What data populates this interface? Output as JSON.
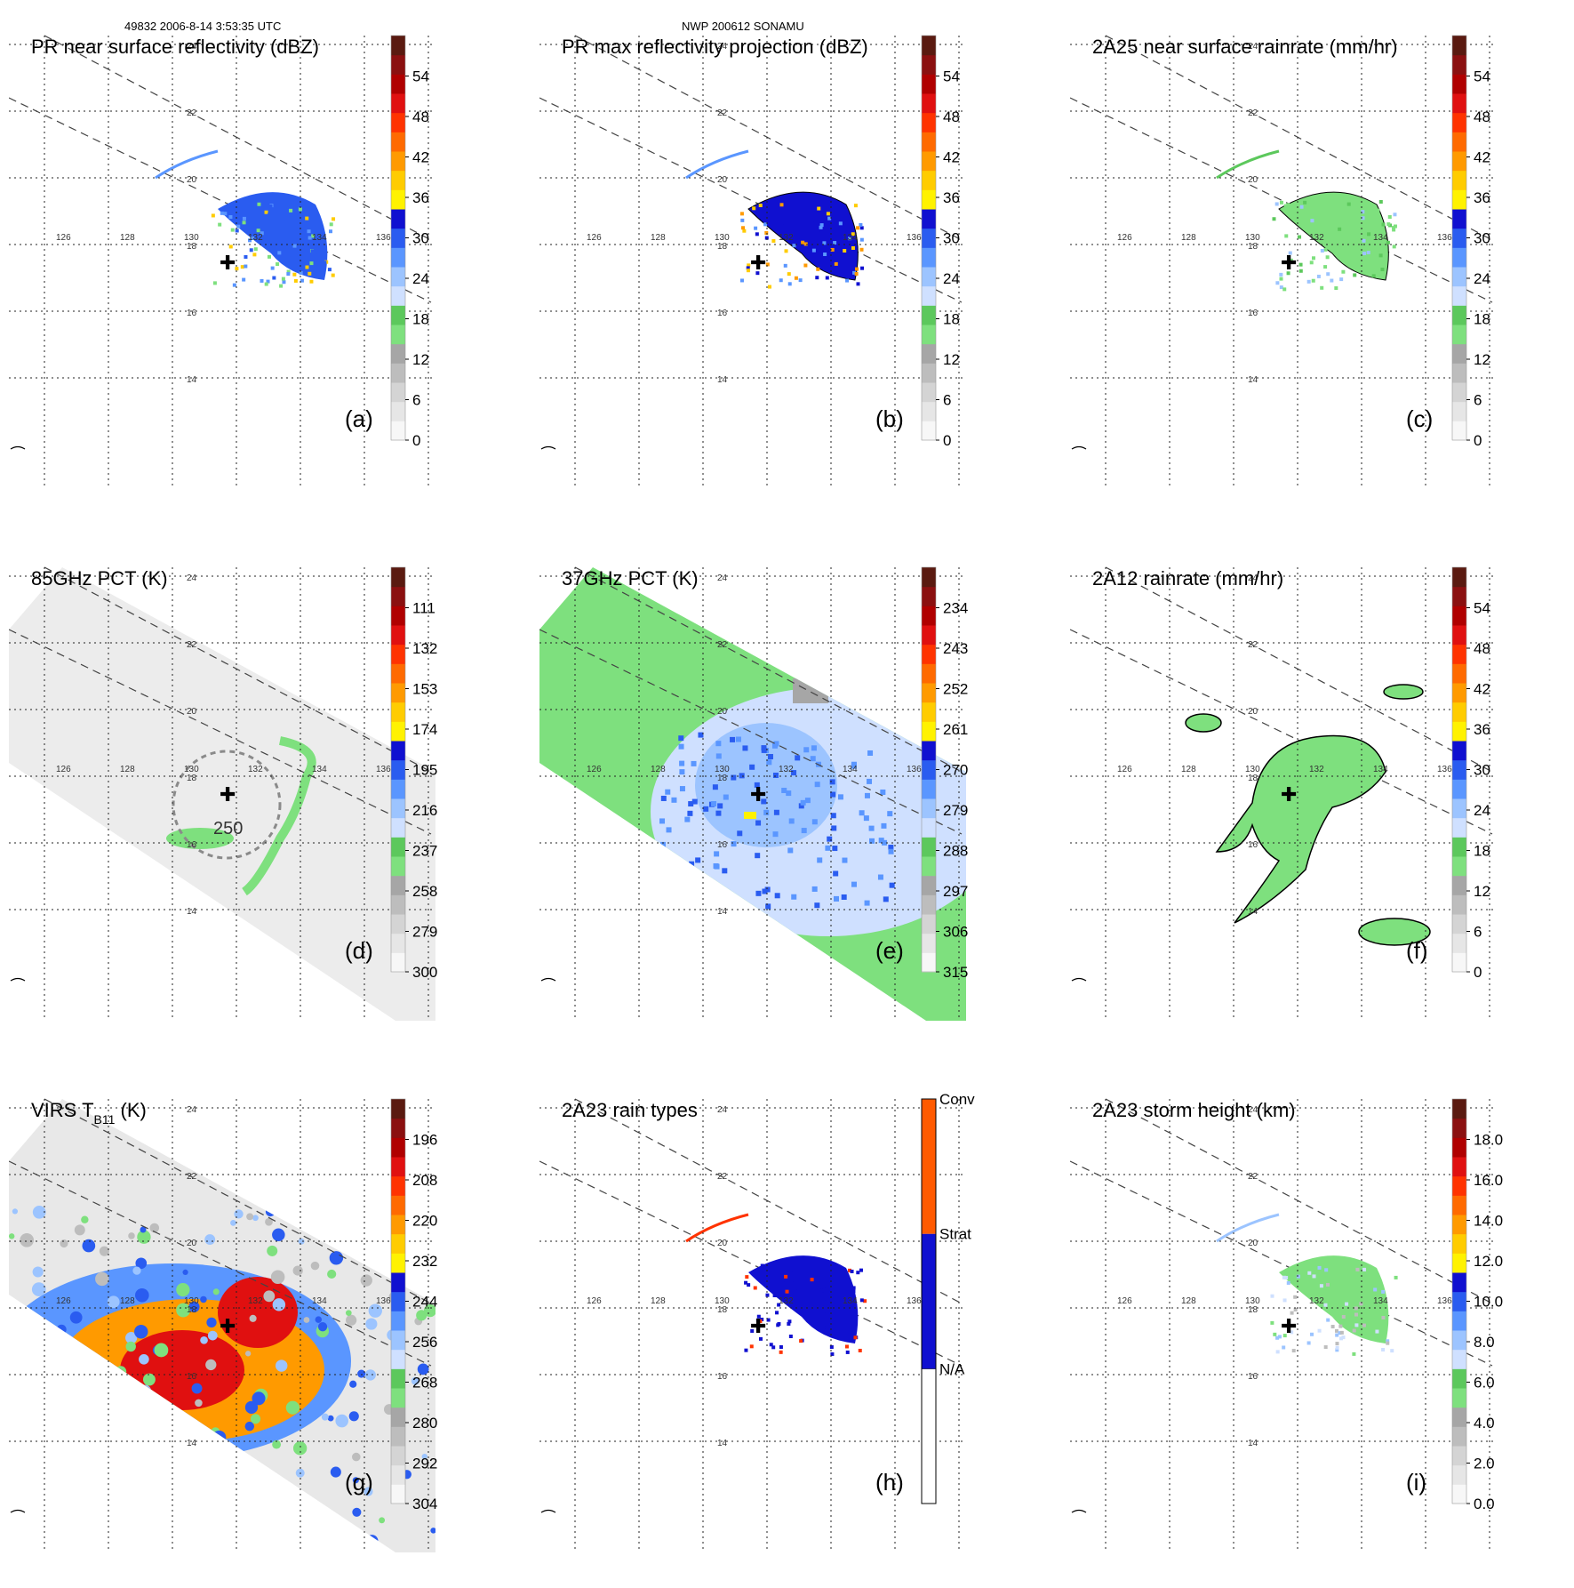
{
  "header": {
    "orbit_time": "49832 2006-8-14 3:53:35 UTC",
    "storm": "NWP 200612 SONAMU"
  },
  "colors": {
    "ramp": [
      "#f7f7f7",
      "#e6e6e6",
      "#d4d4d4",
      "#bdbdbd",
      "#a6a6a6",
      "#7ee07e",
      "#5cc85c",
      "#cfe0ff",
      "#9cc4ff",
      "#5a96ff",
      "#2a5cf0",
      "#1010d0",
      "#fff200",
      "#ffcc00",
      "#ff9a00",
      "#ff6a00",
      "#ff3300",
      "#e01010",
      "#b00000",
      "#8b1010",
      "#5a1a10"
    ],
    "swath": "#444444",
    "grid": "#222222"
  },
  "geo": {
    "lon_labels": [
      "126",
      "128",
      "130",
      "132",
      "134",
      "136"
    ],
    "lat_labels": [
      "24",
      "22",
      "20",
      "18",
      "16",
      "14"
    ]
  },
  "panels": [
    {
      "id": "a",
      "title": "PR near surface reflectivity (dBZ)",
      "letter": "(a)",
      "ticks": [
        "0",
        "6",
        "12",
        "18",
        "24",
        "30",
        "36",
        "42",
        "48",
        "54"
      ],
      "kind": "pr_near"
    },
    {
      "id": "b",
      "title": "PR max reflectivity projection (dBZ)",
      "letter": "(b)",
      "ticks": [
        "0",
        "6",
        "12",
        "18",
        "24",
        "30",
        "36",
        "42",
        "48",
        "54"
      ],
      "kind": "pr_max"
    },
    {
      "id": "c",
      "title": "2A25 near surface rainrate (mm/hr)",
      "letter": "(c)",
      "ticks": [
        "0",
        "6",
        "12",
        "18",
        "24",
        "30",
        "36",
        "42",
        "48",
        "54"
      ],
      "kind": "rain25"
    },
    {
      "id": "d",
      "title": "85GHz PCT (K)",
      "letter": "(d)",
      "ticks": [
        "300",
        "279",
        "258",
        "237",
        "216",
        "195",
        "174",
        "153",
        "132",
        "111"
      ],
      "kind": "pct85",
      "contour_label": "250"
    },
    {
      "id": "e",
      "title": "37GHz PCT (K)",
      "letter": "(e)",
      "ticks": [
        "315",
        "306",
        "297",
        "288",
        "279",
        "270",
        "261",
        "252",
        "243",
        "234"
      ],
      "kind": "pct37"
    },
    {
      "id": "f",
      "title": "2A12 rainrate (mm/hr)",
      "letter": "(f)",
      "ticks": [
        "0",
        "6",
        "12",
        "18",
        "24",
        "30",
        "36",
        "42",
        "48",
        "54"
      ],
      "kind": "rain12"
    },
    {
      "id": "g",
      "title": "VIRS T",
      "title_sub": "B11",
      "title_tail": " (K)",
      "letter": "(g)",
      "ticks": [
        "304",
        "292",
        "280",
        "268",
        "256",
        "244",
        "232",
        "220",
        "208",
        "196"
      ],
      "kind": "virs"
    },
    {
      "id": "h",
      "title": "2A23 rain types",
      "letter": "(h)",
      "ticks": [
        "N/A",
        "Strat",
        "Conv"
      ],
      "kind": "types"
    },
    {
      "id": "i",
      "title": "2A23 storm height (km)",
      "letter": "(i)",
      "ticks": [
        "0.0",
        "2.0",
        "4.0",
        "6.0",
        "8.0",
        "10.0",
        "12.0",
        "14.0",
        "16.0",
        "18.0"
      ],
      "kind": "height"
    }
  ]
}
